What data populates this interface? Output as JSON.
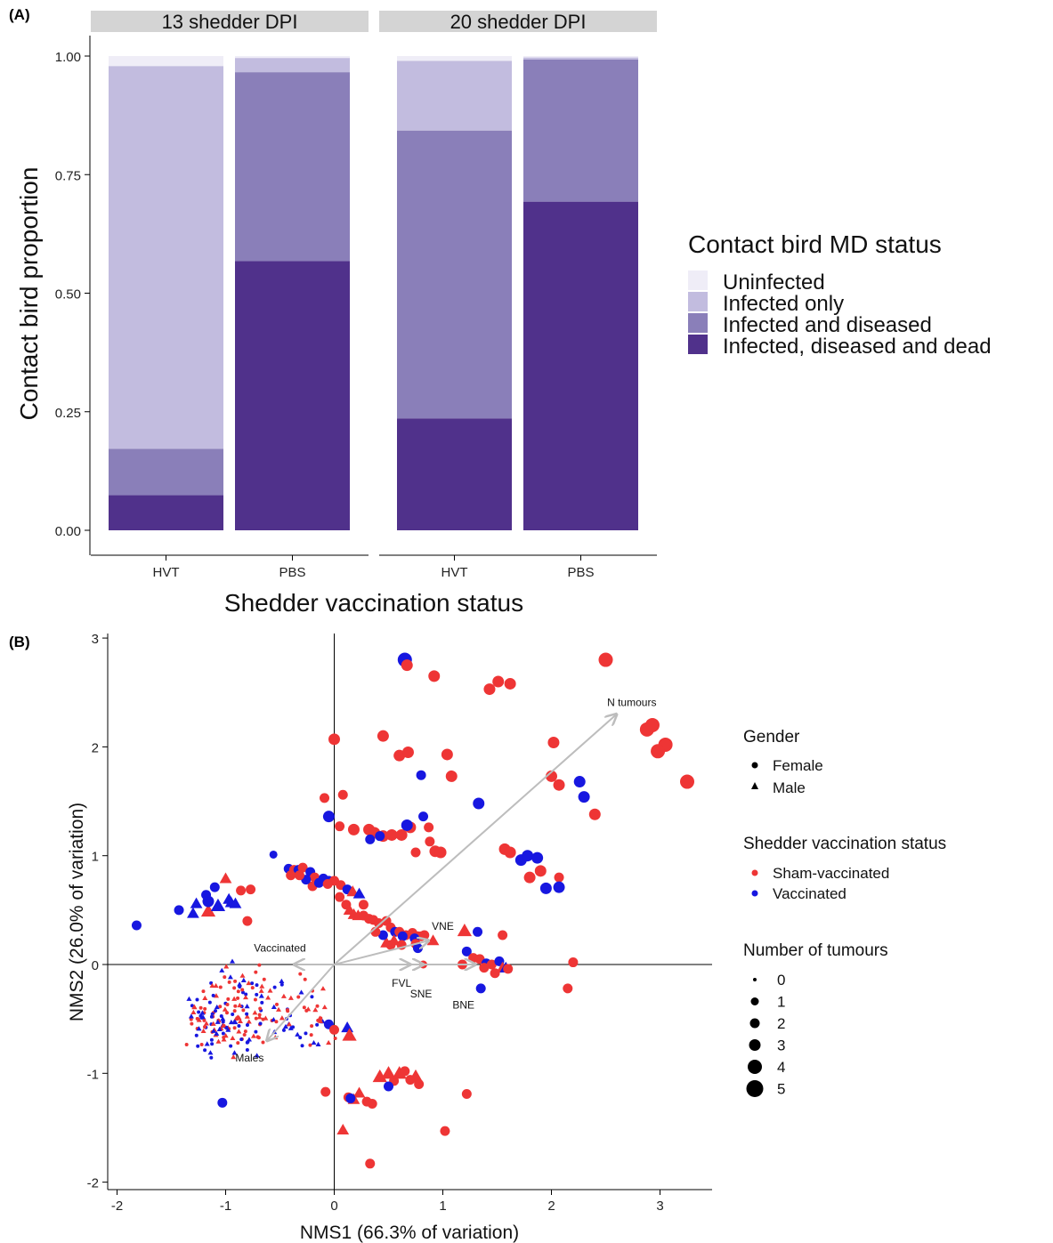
{
  "panel_labels": {
    "a": "(A)",
    "b": "(B)"
  },
  "colors": {
    "uninfected": "#efedf7",
    "infected_only": "#c2bcdf",
    "infected_diseased": "#8a7fb9",
    "infected_diseased_dead": "#50318b",
    "sham": "#ee3535",
    "vaccinated": "#1717e0",
    "arrow": "#bdbdbd",
    "strip": "#d4d4d4"
  },
  "chart_data": [
    {
      "type": "bar",
      "stacked": true,
      "facets": [
        "13 shedder DPI",
        "20 shedder DPI"
      ],
      "categories": [
        "HVT",
        "PBS"
      ],
      "xlabel": "Shedder vaccination status",
      "ylabel": "Contact bird proportion",
      "ylim": [
        0,
        1
      ],
      "yticks": [
        "0.00",
        "0.25",
        "0.50",
        "0.75",
        "1.00"
      ],
      "legend": {
        "title": "Contact bird MD status",
        "position": "right",
        "entries": [
          "Uninfected",
          "Infected only",
          "Infected and diseased",
          "Infected, diseased and dead"
        ]
      },
      "series": [
        {
          "name": "Infected, diseased and dead",
          "values": [
            [
              0.074,
              0.568
            ],
            [
              0.236,
              0.693
            ]
          ]
        },
        {
          "name": "Infected and diseased",
          "values": [
            [
              0.098,
              0.398
            ],
            [
              0.607,
              0.3
            ]
          ]
        },
        {
          "name": "Infected only",
          "values": [
            [
              0.807,
              0.03
            ],
            [
              0.147,
              0.004
            ]
          ]
        },
        {
          "name": "Uninfected",
          "values": [
            [
              0.021,
              0.004
            ],
            [
              0.01,
              0.003
            ]
          ]
        }
      ]
    },
    {
      "type": "scatter",
      "xlabel": "NMS1 (66.3% of variation)",
      "ylabel": "NMS2 (26.0% of variation)",
      "xlim": [
        -2.1,
        3.5
      ],
      "ylim": [
        -2.05,
        3.05
      ],
      "xticks": [
        -2,
        -1,
        0,
        1,
        2,
        3
      ],
      "yticks": [
        -2,
        -1,
        0,
        1,
        2,
        3
      ],
      "vectors": [
        {
          "label": "N tumours",
          "x": 2.6,
          "y": 2.3,
          "lx": 2.74,
          "ly": 2.41
        },
        {
          "label": "VNE",
          "x": 0.87,
          "y": 0.22,
          "lx": 1.0,
          "ly": 0.35
        },
        {
          "label": "Vaccinated",
          "x": -0.37,
          "y": 0.0,
          "lx": -0.5,
          "ly": 0.15
        },
        {
          "label": "FVL",
          "x": 0.7,
          "y": 0.0,
          "lx": 0.62,
          "ly": -0.17
        },
        {
          "label": "SNE",
          "x": 0.82,
          "y": 0.0,
          "lx": 0.8,
          "ly": -0.27
        },
        {
          "label": "BNE",
          "x": 1.3,
          "y": 0.0,
          "lx": 1.19,
          "ly": -0.37
        },
        {
          "label": "Males",
          "x": -0.62,
          "y": -0.7,
          "lx": -0.78,
          "ly": -0.86
        }
      ],
      "legends": [
        {
          "title": "Gender",
          "entries": [
            "Female",
            "Male"
          ]
        },
        {
          "title": "Shedder vaccination status",
          "entries": [
            "Sham-vaccinated",
            "Vaccinated"
          ]
        },
        {
          "title": "Number of tumours",
          "entries": [
            "0",
            "1",
            "2",
            "3",
            "4",
            "5"
          ]
        }
      ],
      "points": [
        [
          0.65,
          2.8,
          "v",
          "f",
          4
        ],
        [
          0.67,
          2.75,
          "s",
          "f",
          3
        ],
        [
          0.92,
          2.65,
          "s",
          "f",
          3
        ],
        [
          1.43,
          2.53,
          "s",
          "f",
          3
        ],
        [
          1.51,
          2.6,
          "s",
          "f",
          3
        ],
        [
          1.62,
          2.58,
          "s",
          "f",
          3
        ],
        [
          2.5,
          2.8,
          "s",
          "f",
          4
        ],
        [
          2.88,
          2.16,
          "s",
          "f",
          4
        ],
        [
          2.93,
          2.2,
          "s",
          "f",
          4
        ],
        [
          3.05,
          2.02,
          "s",
          "f",
          4
        ],
        [
          2.98,
          1.96,
          "s",
          "f",
          4
        ],
        [
          3.25,
          1.68,
          "s",
          "f",
          4
        ],
        [
          0,
          2.07,
          "s",
          "f",
          3
        ],
        [
          0.45,
          2.1,
          "s",
          "f",
          3
        ],
        [
          0.6,
          1.92,
          "s",
          "f",
          3
        ],
        [
          0.68,
          1.95,
          "s",
          "f",
          3
        ],
        [
          1.04,
          1.93,
          "s",
          "f",
          3
        ],
        [
          1.08,
          1.73,
          "s",
          "f",
          3
        ],
        [
          0.8,
          1.74,
          "v",
          "f",
          2
        ],
        [
          2.02,
          2.04,
          "s",
          "f",
          3
        ],
        [
          2.0,
          1.73,
          "s",
          "f",
          3
        ],
        [
          2.07,
          1.65,
          "s",
          "f",
          3
        ],
        [
          2.26,
          1.68,
          "v",
          "f",
          3
        ],
        [
          2.3,
          1.54,
          "v",
          "f",
          3
        ],
        [
          2.4,
          1.38,
          "s",
          "f",
          3
        ],
        [
          1.33,
          1.48,
          "v",
          "f",
          3
        ],
        [
          -0.09,
          1.53,
          "s",
          "f",
          2
        ],
        [
          0.08,
          1.56,
          "s",
          "f",
          2
        ],
        [
          -0.05,
          1.36,
          "v",
          "f",
          3
        ],
        [
          0.05,
          1.27,
          "s",
          "f",
          2
        ],
        [
          0.18,
          1.24,
          "s",
          "f",
          3
        ],
        [
          0.32,
          1.24,
          "s",
          "f",
          3
        ],
        [
          0.37,
          1.21,
          "s",
          "f",
          3
        ],
        [
          0.45,
          1.18,
          "s",
          "f",
          3
        ],
        [
          0.53,
          1.19,
          "s",
          "f",
          3
        ],
        [
          0.62,
          1.19,
          "s",
          "f",
          3
        ],
        [
          0.7,
          1.26,
          "s",
          "f",
          3
        ],
        [
          0.67,
          1.28,
          "v",
          "f",
          3
        ],
        [
          0.82,
          1.36,
          "v",
          "f",
          2
        ],
        [
          0.87,
          1.26,
          "s",
          "f",
          2
        ],
        [
          0.88,
          1.13,
          "s",
          "f",
          2
        ],
        [
          0.93,
          1.04,
          "s",
          "f",
          3
        ],
        [
          0.98,
          1.03,
          "s",
          "f",
          3
        ],
        [
          0.75,
          1.03,
          "s",
          "f",
          2
        ],
        [
          0.33,
          1.15,
          "v",
          "f",
          2
        ],
        [
          0.42,
          1.18,
          "v",
          "f",
          2
        ],
        [
          1.57,
          1.06,
          "s",
          "f",
          3
        ],
        [
          1.62,
          1.03,
          "s",
          "f",
          3
        ],
        [
          1.72,
          0.96,
          "v",
          "f",
          3
        ],
        [
          1.78,
          1.0,
          "v",
          "f",
          3
        ],
        [
          1.87,
          0.98,
          "v",
          "f",
          3
        ],
        [
          1.9,
          0.86,
          "s",
          "f",
          3
        ],
        [
          1.8,
          0.8,
          "s",
          "f",
          3
        ],
        [
          1.95,
          0.7,
          "v",
          "f",
          3
        ],
        [
          2.07,
          0.8,
          "s",
          "f",
          2
        ],
        [
          2.07,
          0.71,
          "v",
          "f",
          3
        ],
        [
          -0.56,
          1.01,
          "v",
          "f",
          1
        ],
        [
          -1.82,
          0.36,
          "v",
          "f",
          2
        ],
        [
          -1.3,
          0.47,
          "v",
          "t",
          2
        ],
        [
          -1.16,
          0.49,
          "s",
          "t",
          3
        ],
        [
          -1.16,
          0.58,
          "v",
          "f",
          3
        ],
        [
          -1.27,
          0.56,
          "v",
          "t",
          2
        ],
        [
          -1.07,
          0.54,
          "v",
          "t",
          3
        ],
        [
          -1.18,
          0.64,
          "v",
          "f",
          2
        ],
        [
          -1.1,
          0.71,
          "v",
          "f",
          2
        ],
        [
          -1.0,
          0.79,
          "s",
          "t",
          2
        ],
        [
          -0.97,
          0.6,
          "v",
          "t",
          2
        ],
        [
          -0.95,
          0.57,
          "v",
          "t",
          2
        ],
        [
          -0.91,
          0.56,
          "v",
          "t",
          2
        ],
        [
          -0.86,
          0.68,
          "s",
          "f",
          2
        ],
        [
          -0.77,
          0.69,
          "s",
          "f",
          2
        ],
        [
          -0.8,
          0.4,
          "s",
          "f",
          2
        ],
        [
          -1.43,
          0.5,
          "v",
          "f",
          2
        ],
        [
          -0.42,
          0.88,
          "v",
          "f",
          2
        ],
        [
          -0.37,
          0.87,
          "s",
          "f",
          2
        ],
        [
          -0.33,
          0.87,
          "v",
          "f",
          2
        ],
        [
          -0.29,
          0.89,
          "s",
          "f",
          2
        ],
        [
          -0.22,
          0.85,
          "v",
          "f",
          2
        ],
        [
          -0.18,
          0.8,
          "s",
          "f",
          2
        ],
        [
          -0.1,
          0.79,
          "v",
          "f",
          2
        ],
        [
          -0.05,
          0.77,
          "v",
          "f",
          2
        ],
        [
          0.0,
          0.77,
          "s",
          "f",
          2
        ],
        [
          0.06,
          0.73,
          "s",
          "f",
          2
        ],
        [
          0.12,
          0.69,
          "v",
          "f",
          2
        ],
        [
          0.17,
          0.67,
          "s",
          "t",
          2
        ],
        [
          0.23,
          0.65,
          "v",
          "t",
          2
        ],
        [
          0.27,
          0.55,
          "s",
          "f",
          2
        ],
        [
          -0.2,
          0.72,
          "s",
          "f",
          2
        ],
        [
          -0.14,
          0.75,
          "v",
          "f",
          2
        ],
        [
          -0.06,
          0.74,
          "s",
          "f",
          2
        ],
        [
          -0.26,
          0.78,
          "v",
          "f",
          2
        ],
        [
          -0.32,
          0.82,
          "s",
          "f",
          2
        ],
        [
          -0.4,
          0.82,
          "s",
          "f",
          2
        ],
        [
          0.05,
          0.62,
          "s",
          "f",
          2
        ],
        [
          0.11,
          0.55,
          "s",
          "f",
          2
        ],
        [
          0.14,
          0.5,
          "s",
          "t",
          2
        ],
        [
          0.18,
          0.46,
          "s",
          "t",
          2
        ],
        [
          0.22,
          0.45,
          "s",
          "t",
          2
        ],
        [
          0.27,
          0.45,
          "s",
          "f",
          2
        ],
        [
          0.32,
          0.42,
          "s",
          "f",
          2
        ],
        [
          0.36,
          0.41,
          "s",
          "f",
          2
        ],
        [
          0.41,
          0.38,
          "s",
          "f",
          2
        ],
        [
          0.48,
          0.4,
          "s",
          "f",
          2
        ],
        [
          0.52,
          0.34,
          "s",
          "f",
          2
        ],
        [
          0.56,
          0.3,
          "v",
          "f",
          2
        ],
        [
          0.6,
          0.3,
          "s",
          "f",
          2
        ],
        [
          0.66,
          0.27,
          "s",
          "f",
          2
        ],
        [
          0.72,
          0.29,
          "s",
          "f",
          2
        ],
        [
          0.77,
          0.26,
          "s",
          "f",
          2
        ],
        [
          0.8,
          0.26,
          "s",
          "f",
          2
        ],
        [
          0.83,
          0.27,
          "s",
          "f",
          2
        ],
        [
          0.63,
          0.26,
          "v",
          "f",
          2
        ],
        [
          0.74,
          0.24,
          "v",
          "f",
          2
        ],
        [
          0.48,
          0.2,
          "s",
          "t",
          2
        ],
        [
          0.55,
          0.22,
          "s",
          "t",
          2
        ],
        [
          0.45,
          0.27,
          "v",
          "f",
          2
        ],
        [
          0.38,
          0.3,
          "s",
          "f",
          2
        ],
        [
          0.52,
          0.18,
          "s",
          "f",
          2
        ],
        [
          0.62,
          0.18,
          "s",
          "f",
          2
        ],
        [
          0.75,
          0.19,
          "s",
          "f",
          2
        ],
        [
          0.77,
          0.15,
          "v",
          "f",
          2
        ],
        [
          0.82,
          0.0,
          "s",
          "f",
          1
        ],
        [
          0.91,
          0.22,
          "s",
          "t",
          2
        ],
        [
          1.32,
          0.3,
          "v",
          "f",
          2
        ],
        [
          1.55,
          0.27,
          "s",
          "f",
          2
        ],
        [
          1.2,
          0.31,
          "s",
          "t",
          3
        ],
        [
          1.22,
          0.12,
          "v",
          "f",
          2
        ],
        [
          1.28,
          0.06,
          "s",
          "f",
          2
        ],
        [
          1.34,
          0.05,
          "s",
          "f",
          2
        ],
        [
          1.4,
          0.01,
          "v",
          "f",
          2
        ],
        [
          1.45,
          0.0,
          "s",
          "f",
          2
        ],
        [
          1.52,
          0.03,
          "v",
          "f",
          2
        ],
        [
          1.55,
          -0.03,
          "s",
          "t",
          2
        ],
        [
          1.58,
          -0.03,
          "v",
          "t",
          2
        ],
        [
          1.6,
          -0.04,
          "s",
          "f",
          2
        ],
        [
          1.48,
          -0.08,
          "s",
          "f",
          2
        ],
        [
          1.35,
          -0.22,
          "v",
          "f",
          2
        ],
        [
          1.38,
          -0.03,
          "s",
          "f",
          2
        ],
        [
          1.18,
          0.0,
          "s",
          "f",
          2
        ],
        [
          2.2,
          0.02,
          "s",
          "f",
          2
        ],
        [
          2.15,
          -0.22,
          "s",
          "f",
          2
        ],
        [
          -0.08,
          -1.17,
          "s",
          "f",
          2
        ],
        [
          0.13,
          -1.22,
          "s",
          "f",
          2
        ],
        [
          0.18,
          -1.24,
          "s",
          "t",
          2
        ],
        [
          0.23,
          -1.18,
          "s",
          "t",
          2
        ],
        [
          0.3,
          -1.26,
          "s",
          "f",
          2
        ],
        [
          0.35,
          -1.28,
          "s",
          "f",
          2
        ],
        [
          0.42,
          -1.03,
          "s",
          "t",
          3
        ],
        [
          0.5,
          -1.0,
          "s",
          "t",
          3
        ],
        [
          0.55,
          -1.07,
          "s",
          "f",
          2
        ],
        [
          0.6,
          -1.0,
          "s",
          "t",
          3
        ],
        [
          0.65,
          -0.98,
          "s",
          "f",
          2
        ],
        [
          0.7,
          -1.06,
          "s",
          "f",
          2
        ],
        [
          0.75,
          -1.03,
          "s",
          "t",
          3
        ],
        [
          0.78,
          -1.1,
          "s",
          "f",
          2
        ],
        [
          0.5,
          -1.12,
          "v",
          "f",
          2
        ],
        [
          0.15,
          -1.23,
          "v",
          "f",
          2
        ],
        [
          1.22,
          -1.19,
          "s",
          "f",
          2
        ],
        [
          1.02,
          -1.53,
          "s",
          "f",
          2
        ],
        [
          0.33,
          -1.83,
          "s",
          "f",
          2
        ],
        [
          0.08,
          -1.52,
          "s",
          "t",
          2
        ],
        [
          -1.03,
          -1.27,
          "v",
          "f",
          2
        ],
        [
          0.12,
          -0.58,
          "v",
          "t",
          2
        ],
        [
          0.14,
          -0.65,
          "s",
          "t",
          3
        ],
        [
          -0.05,
          -0.55,
          "v",
          "f",
          2
        ],
        [
          0.0,
          -0.6,
          "s",
          "f",
          2
        ]
      ]
    }
  ]
}
